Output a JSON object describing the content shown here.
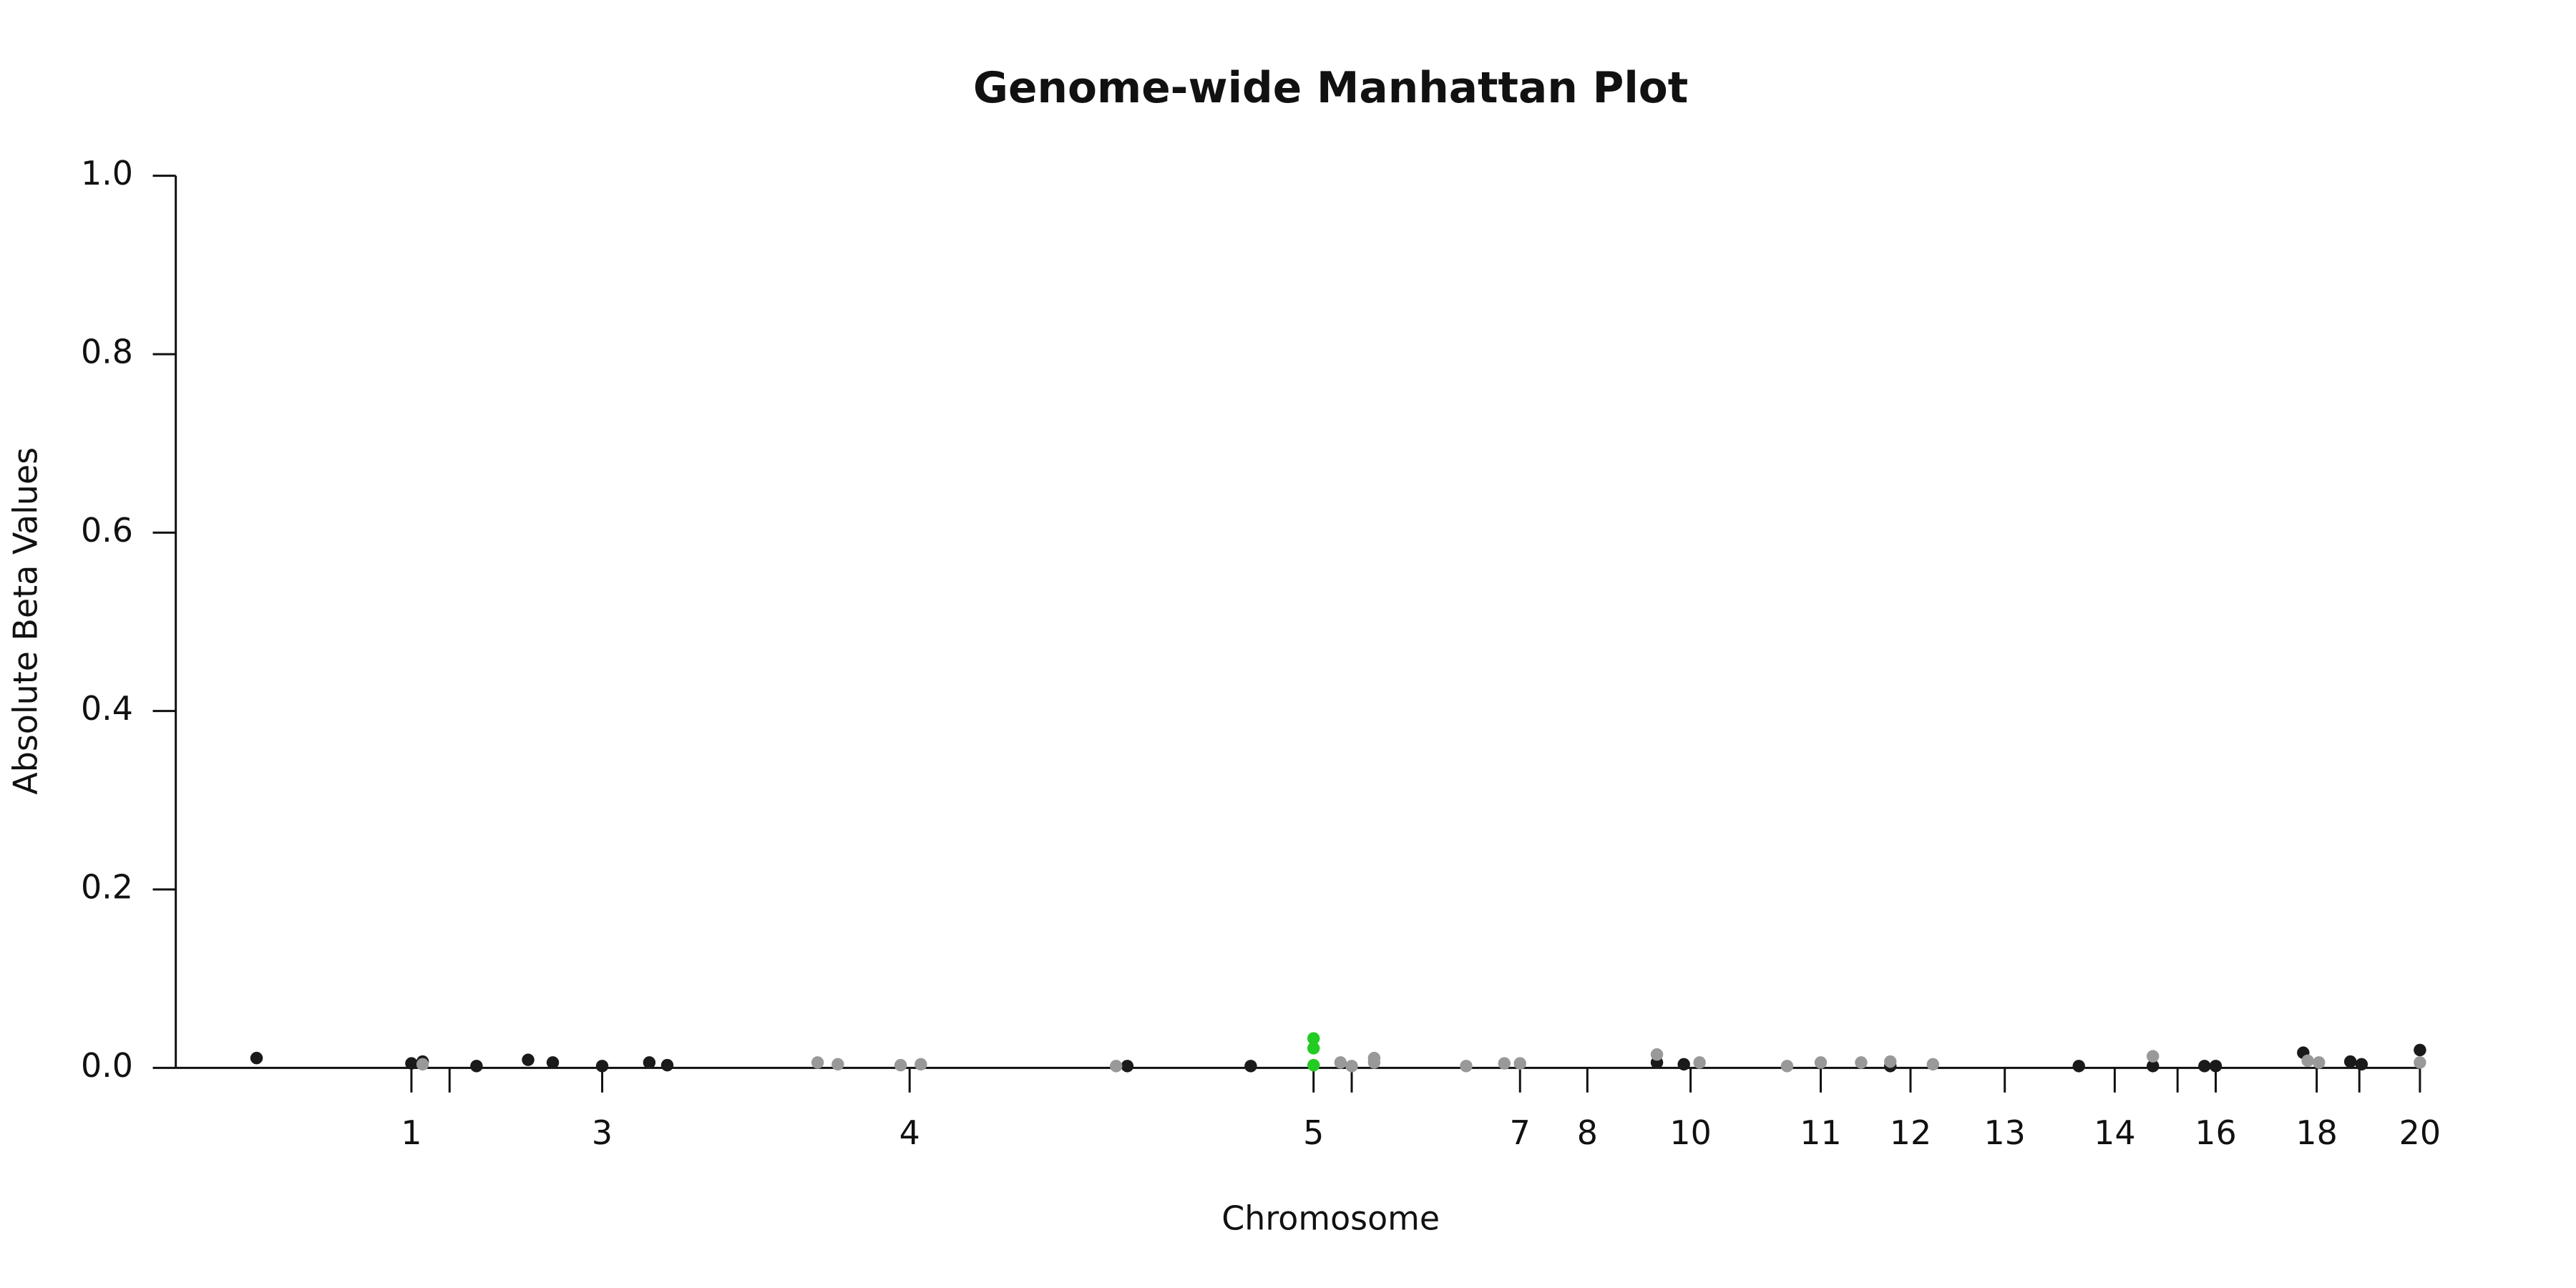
{
  "chart_data": {
    "type": "scatter",
    "title": "Genome-wide Manhattan Plot",
    "x_label": "Chromosome",
    "y_label": "Absolute Beta Values",
    "xlim": [
      0,
      100
    ],
    "ylim": [
      0,
      1
    ],
    "yticks": [
      {
        "value": 0,
        "label": "0.0"
      },
      0.2,
      0.4,
      0.6,
      0.8,
      {
        "value": 1,
        "label": "1.0"
      }
    ],
    "xticks": [
      {
        "value": 10.5,
        "label": "1"
      },
      {
        "value": 12.2,
        "label": null
      },
      {
        "value": 19.0,
        "label": "3"
      },
      {
        "value": 32.7,
        "label": "4"
      },
      {
        "value": 50.7,
        "label": "5"
      },
      {
        "value": 52.4,
        "label": null
      },
      {
        "value": 59.9,
        "label": "7"
      },
      {
        "value": 62.9,
        "label": "8"
      },
      {
        "value": 67.5,
        "label": "10"
      },
      {
        "value": 73.3,
        "label": "11"
      },
      {
        "value": 77.3,
        "label": "12"
      },
      {
        "value": 81.5,
        "label": "13"
      },
      {
        "value": 86.4,
        "label": "14"
      },
      {
        "value": 89.2,
        "label": null
      },
      {
        "value": 90.9,
        "label": "16"
      },
      {
        "value": 95.4,
        "label": "18"
      },
      {
        "value": 97.3,
        "label": null
      },
      {
        "value": 100,
        "label": "20"
      }
    ],
    "series": [
      {
        "color": "#1a1a1a",
        "x": [
          3.6,
          10.5,
          11.0,
          13.4,
          15.7,
          16.8,
          19.0,
          21.1,
          21.9,
          42.4,
          47.9,
          66.0,
          67.2,
          76.4,
          84.8,
          88.1,
          90.4,
          90.9,
          94.8,
          96.9,
          97.4,
          100
        ],
        "values": [
          0.011,
          0.005,
          0.007,
          0.002,
          0.009,
          0.006,
          0.002,
          0.006,
          0.003,
          0.002,
          0.002,
          0.006,
          0.004,
          0.002,
          0.002,
          0.002,
          0.002,
          0.002,
          0.017,
          0.007,
          0.004,
          0.02
        ]
      },
      {
        "color": "#999999",
        "x": [
          11.0,
          28.6,
          29.5,
          32.3,
          33.2,
          41.9,
          51.9,
          52.4,
          53.4,
          53.4,
          57.5,
          59.2,
          59.9,
          66.0,
          67.9,
          71.8,
          73.3,
          75.1,
          76.4,
          78.3,
          88.1,
          95.0,
          95.5,
          100
        ],
        "values": [
          0.004,
          0.006,
          0.004,
          0.003,
          0.004,
          0.002,
          0.006,
          0.002,
          0.011,
          0.006,
          0.002,
          0.005,
          0.005,
          0.015,
          0.006,
          0.002,
          0.006,
          0.006,
          0.007,
          0.004,
          0.013,
          0.008,
          0.006,
          0.006
        ]
      },
      {
        "color": "#22cc22",
        "x": [
          50.7,
          50.7,
          50.7
        ],
        "values": [
          0.033,
          0.022,
          0.003
        ]
      }
    ]
  }
}
